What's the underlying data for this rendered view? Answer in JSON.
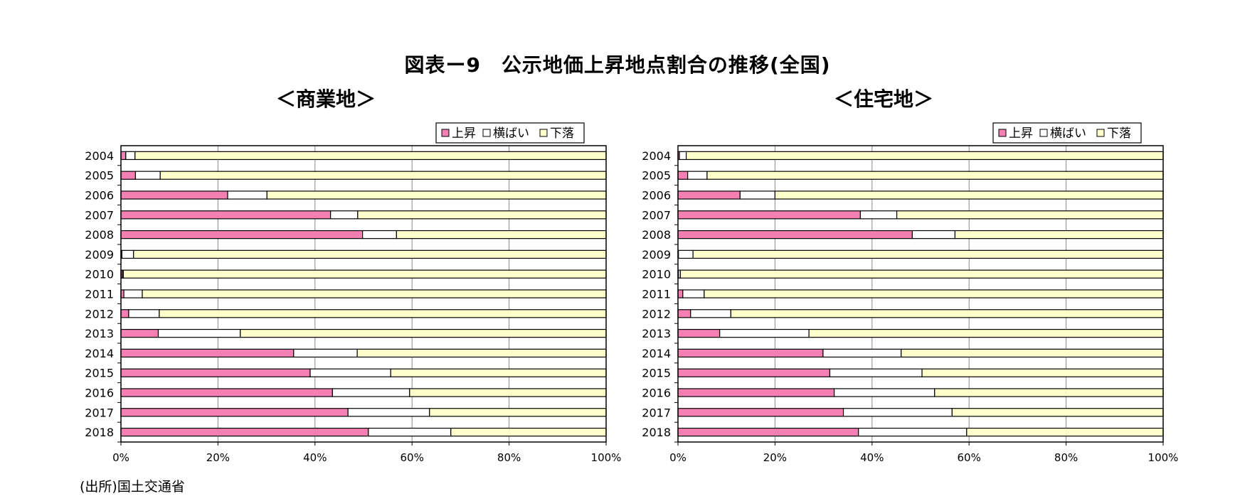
{
  "title": "図表ー9　公示地価上昇地点割合の推移(全国)",
  "source": "(出所)国土交通省",
  "colors": {
    "rise": "#f47fb3",
    "flat": "#ffffff",
    "fall": "#ffffcc",
    "border": "#000000"
  },
  "chart_data": [
    {
      "type": "bar",
      "orientation": "horizontal-stacked-100",
      "title": "＜商業地＞",
      "categories": [
        "2004",
        "2005",
        "2006",
        "2007",
        "2008",
        "2009",
        "2010",
        "2011",
        "2012",
        "2013",
        "2014",
        "2015",
        "2016",
        "2017",
        "2018"
      ],
      "series": [
        {
          "name": "上昇",
          "values": [
            1.0,
            3.0,
            22.0,
            43.2,
            49.8,
            0.2,
            0.3,
            0.6,
            1.6,
            7.7,
            35.6,
            39.0,
            43.6,
            46.8,
            51.0
          ]
        },
        {
          "name": "横ばい",
          "values": [
            1.9,
            5.1,
            8.1,
            5.6,
            7.0,
            2.4,
            0.2,
            3.8,
            6.3,
            16.9,
            13.1,
            16.6,
            15.9,
            16.8,
            17.0
          ]
        },
        {
          "name": "下落",
          "values": [
            97.1,
            91.9,
            69.9,
            51.2,
            43.2,
            97.4,
            99.5,
            95.6,
            92.1,
            75.4,
            51.3,
            44.4,
            40.5,
            36.4,
            32.0
          ]
        }
      ],
      "xlim": [
        0,
        100
      ],
      "xticks": [
        "0%",
        "20%",
        "40%",
        "60%",
        "80%",
        "100%"
      ],
      "legend": "top-right"
    },
    {
      "type": "bar",
      "orientation": "horizontal-stacked-100",
      "title": "＜住宅地＞",
      "categories": [
        "2004",
        "2005",
        "2006",
        "2007",
        "2008",
        "2009",
        "2010",
        "2011",
        "2012",
        "2013",
        "2014",
        "2015",
        "2016",
        "2017",
        "2018"
      ],
      "series": [
        {
          "name": "上昇",
          "values": [
            0.3,
            2.0,
            12.8,
            37.6,
            48.3,
            0.1,
            0.1,
            1.0,
            2.6,
            8.6,
            29.9,
            31.3,
            32.2,
            34.1,
            37.2
          ]
        },
        {
          "name": "横ばい",
          "values": [
            1.4,
            4.0,
            7.2,
            7.5,
            8.8,
            3.0,
            0.4,
            4.4,
            8.3,
            18.4,
            16.1,
            19.0,
            20.7,
            22.4,
            22.3
          ]
        },
        {
          "name": "下落",
          "values": [
            98.3,
            94.0,
            80.0,
            54.9,
            42.9,
            96.9,
            99.5,
            94.6,
            89.1,
            73.0,
            54.0,
            49.7,
            47.1,
            43.5,
            40.5
          ]
        }
      ],
      "xlim": [
        0,
        100
      ],
      "xticks": [
        "0%",
        "20%",
        "40%",
        "60%",
        "80%",
        "100%"
      ],
      "legend": "top-right"
    }
  ]
}
